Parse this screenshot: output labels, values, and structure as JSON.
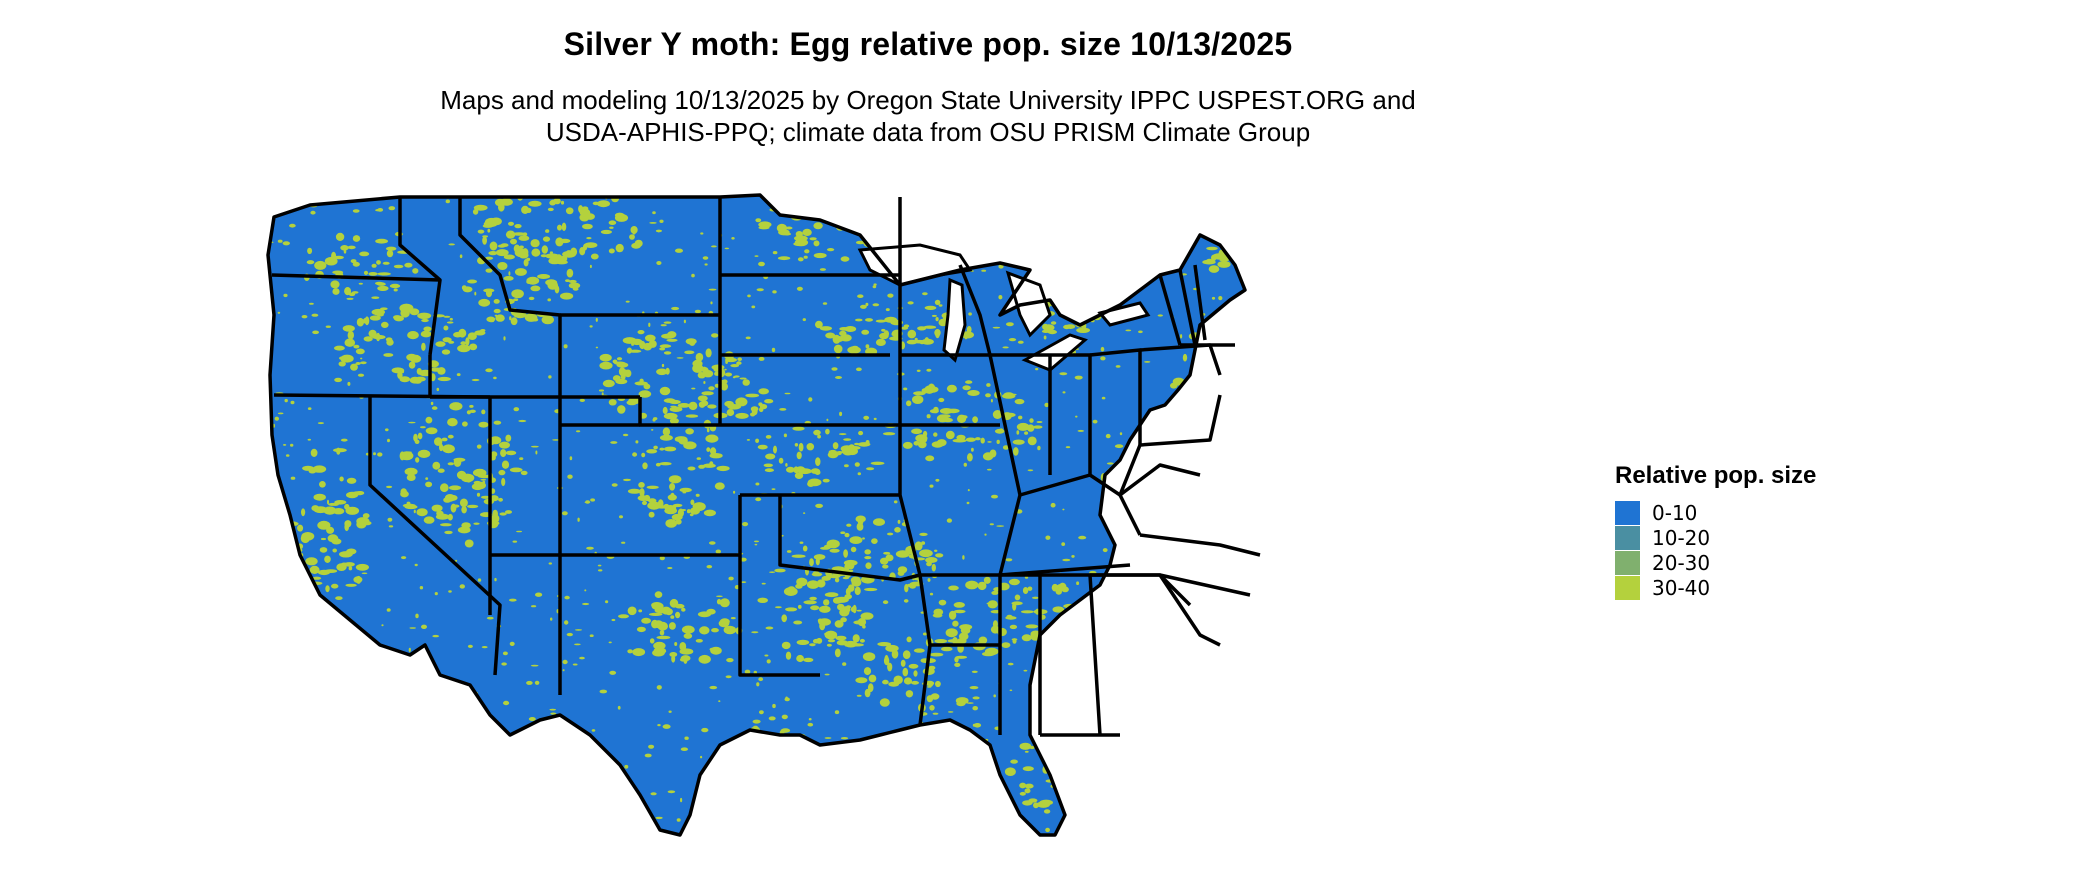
{
  "title": "Silver Y moth: Egg relative pop. size 10/13/2025",
  "subtitle_line1": "Maps and modeling 10/13/2025 by Oregon State University IPPC USPEST.ORG and",
  "subtitle_line2": "USDA-APHIS-PPQ; climate data from OSU PRISM Climate Group",
  "legend": {
    "title": "Relative pop. size",
    "items": [
      {
        "label": "0-10",
        "color": "#1f74d3"
      },
      {
        "label": "10-20",
        "color": "#4a8fa2"
      },
      {
        "label": "20-30",
        "color": "#80b06e"
      },
      {
        "label": "30-40",
        "color": "#b4d13d"
      }
    ]
  },
  "map": {
    "base_color": "#1f74d3",
    "hotspot_color": "#b4d13d",
    "border_color": "#000000",
    "lake_color": "#ffffff"
  }
}
